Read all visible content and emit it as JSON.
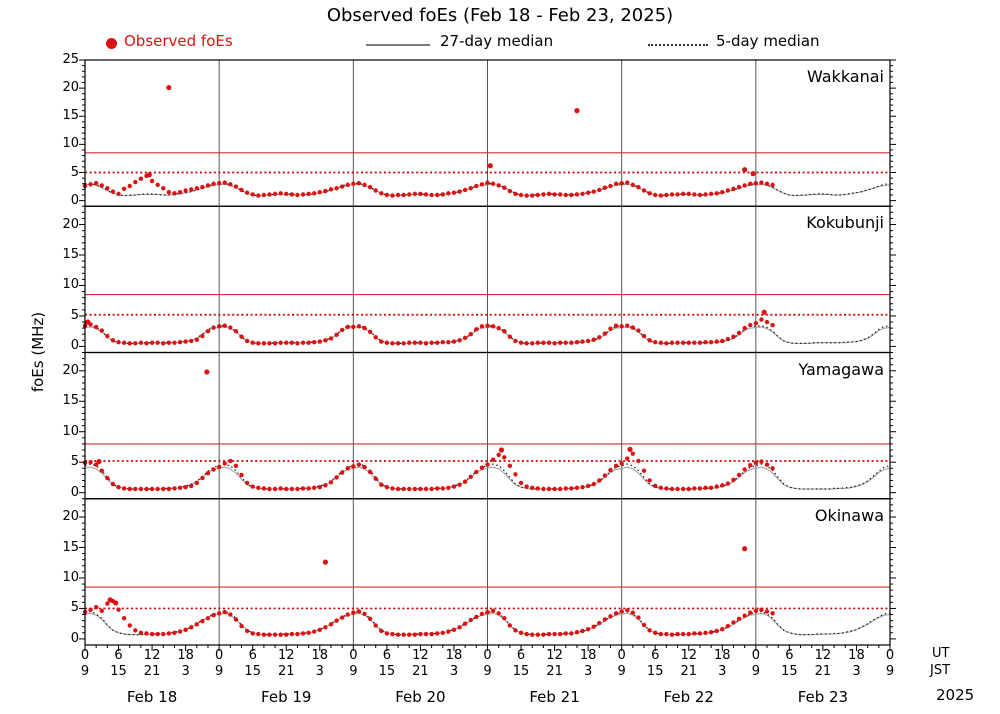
{
  "title": "Observed foEs (Feb 18 - Feb 23, 2025)",
  "legend": {
    "observed": "Observed foEs",
    "median27": "27-day median",
    "median5": "5-day median"
  },
  "ylabel": "foEs (MHz)",
  "corner": {
    "ut": "UT",
    "jst": "JST",
    "year": "2025"
  },
  "colors": {
    "observed": "#dd1111",
    "threshold_solid": "#cc3333",
    "threshold_dotted": "#cc0000",
    "median27": "#9a9a9a",
    "median5": "#1a1a1a",
    "dayline": "#555555",
    "frame": "#000000"
  },
  "chart_data": {
    "type": "scatter",
    "title": "Observed foEs (Feb 18 - Feb 23, 2025)",
    "ylabel": "foEs (MHz)",
    "x_axis": {
      "total_hours": 144,
      "major_tick_step_hours": 6,
      "minor_tick_step_hours": 2,
      "ut_tick_labels": [
        "0",
        "6",
        "12",
        "18",
        "0",
        "6",
        "12",
        "18",
        "0",
        "6",
        "12",
        "18",
        "0",
        "6",
        "12",
        "18",
        "0",
        "6",
        "12",
        "18",
        "0",
        "6",
        "12",
        "18",
        "0"
      ],
      "jst_tick_labels": [
        "9",
        "15",
        "21",
        "3",
        "9",
        "15",
        "21",
        "3",
        "9",
        "15",
        "21",
        "3",
        "9",
        "15",
        "21",
        "3",
        "9",
        "15",
        "21",
        "3",
        "9",
        "15",
        "21",
        "3",
        "9"
      ],
      "day_labels": [
        "Feb 18",
        "Feb 19",
        "Feb 20",
        "Feb 21",
        "Feb 22",
        "Feb 23"
      ],
      "day_centers_hours": [
        12,
        36,
        60,
        84,
        108,
        132
      ],
      "day_boundary_hours": [
        24,
        48,
        72,
        96,
        120
      ]
    },
    "stations": [
      {
        "name": "Wakkanai",
        "ymin": -1,
        "ymax": 25,
        "yticks": [
          0,
          5,
          10,
          15,
          20,
          25
        ],
        "threshold_solid": 8.5,
        "threshold_dotted": 5.0,
        "observed_start_hour": 0,
        "observed_step_hours": 1,
        "observed": [
          2.6,
          2.9,
          3.1,
          2.7,
          2.2,
          1.6,
          1.2,
          2.1,
          2.6,
          3.3,
          3.9,
          4.4,
          3.5,
          2.8,
          2.2,
          1.5,
          1.3,
          1.5,
          1.8,
          2.0,
          2.2,
          2.4,
          2.7,
          3.0,
          3.1,
          3.2,
          2.9,
          2.5,
          1.9,
          1.4,
          1.1,
          0.9,
          1.0,
          1.1,
          1.2,
          1.3,
          1.2,
          1.1,
          1.0,
          1.1,
          1.2,
          1.3,
          1.5,
          1.7,
          2.0,
          2.2,
          2.5,
          2.8,
          3.0,
          3.1,
          2.8,
          2.4,
          1.8,
          1.3,
          1.0,
          0.9,
          1.0,
          1.0,
          1.1,
          1.2,
          1.2,
          1.1,
          1.0,
          1.0,
          1.1,
          1.3,
          1.4,
          1.6,
          1.9,
          2.2,
          2.6,
          2.9,
          3.2,
          3.0,
          2.7,
          2.3,
          1.7,
          1.2,
          1.0,
          0.9,
          0.9,
          1.0,
          1.1,
          1.2,
          1.1,
          1.1,
          1.0,
          1.0,
          1.1,
          1.2,
          1.4,
          1.6,
          1.9,
          2.3,
          2.6,
          3.0,
          3.1,
          3.2,
          2.8,
          2.4,
          1.8,
          1.3,
          1.0,
          0.9,
          1.0,
          1.1,
          1.1,
          1.2,
          1.2,
          1.1,
          1.0,
          1.1,
          1.2,
          1.3,
          1.5,
          1.8,
          2.1,
          2.4,
          2.7,
          3.0,
          3.1,
          3.2,
          3.0,
          2.8
        ],
        "outliers": [
          [
            15,
            20.1
          ],
          [
            88,
            16.0
          ],
          [
            72.5,
            6.2
          ],
          [
            11.5,
            4.6
          ],
          [
            118,
            5.5
          ],
          [
            119.5,
            4.8
          ]
        ],
        "median27_daily": [
          2.8,
          2.9,
          2.7,
          2.3,
          1.8,
          1.3,
          1.0,
          0.9,
          0.9,
          1.0,
          1.1,
          1.1,
          1.1,
          1.1,
          1.0,
          1.0,
          1.1,
          1.2,
          1.4,
          1.6,
          1.9,
          2.2,
          2.5,
          2.7
        ],
        "median5_daily": [
          3.0,
          3.1,
          2.8,
          2.4,
          1.8,
          1.3,
          1.0,
          0.9,
          1.0,
          1.0,
          1.1,
          1.2,
          1.2,
          1.1,
          1.0,
          1.0,
          1.1,
          1.3,
          1.4,
          1.6,
          1.9,
          2.2,
          2.6,
          2.9
        ]
      },
      {
        "name": "Kokubunji",
        "ymin": -1,
        "ymax": 23,
        "yticks": [
          0,
          5,
          10,
          15,
          20
        ],
        "threshold_solid": 8.5,
        "threshold_dotted": 5.2,
        "observed_start_hour": 0,
        "observed_step_hours": 1,
        "observed": [
          3.4,
          3.6,
          3.2,
          2.6,
          1.7,
          1.0,
          0.7,
          0.6,
          0.5,
          0.5,
          0.6,
          0.5,
          0.6,
          0.6,
          0.5,
          0.6,
          0.6,
          0.7,
          0.8,
          0.9,
          1.1,
          1.7,
          2.5,
          3.1,
          3.3,
          3.4,
          3.1,
          2.5,
          1.6,
          0.9,
          0.6,
          0.5,
          0.5,
          0.5,
          0.5,
          0.6,
          0.6,
          0.6,
          0.5,
          0.6,
          0.6,
          0.7,
          0.8,
          1.0,
          1.3,
          1.9,
          2.7,
          3.2,
          3.2,
          3.3,
          3.0,
          2.4,
          1.5,
          0.8,
          0.6,
          0.5,
          0.5,
          0.5,
          0.6,
          0.6,
          0.6,
          0.5,
          0.6,
          0.6,
          0.7,
          0.7,
          0.8,
          1.0,
          1.4,
          2.0,
          2.8,
          3.3,
          3.4,
          3.3,
          3.0,
          2.5,
          1.6,
          0.9,
          0.6,
          0.5,
          0.5,
          0.6,
          0.6,
          0.6,
          0.5,
          0.6,
          0.6,
          0.6,
          0.7,
          0.8,
          0.9,
          1.1,
          1.5,
          2.1,
          2.9,
          3.4,
          3.3,
          3.4,
          3.1,
          2.6,
          1.7,
          1.0,
          0.7,
          0.6,
          0.5,
          0.6,
          0.6,
          0.6,
          0.6,
          0.6,
          0.6,
          0.7,
          0.7,
          0.8,
          0.9,
          1.2,
          1.6,
          2.2,
          3.0,
          3.5,
          3.8,
          4.4,
          4.0,
          3.5
        ],
        "outliers": [
          [
            121.5,
            5.6
          ],
          [
            0.5,
            4.0
          ]
        ],
        "median27_daily": [
          3.1,
          3.2,
          2.9,
          2.4,
          1.5,
          0.9,
          0.6,
          0.5,
          0.5,
          0.5,
          0.5,
          0.6,
          0.6,
          0.6,
          0.6,
          0.6,
          0.6,
          0.7,
          0.8,
          1.0,
          1.3,
          1.9,
          2.6,
          3.0
        ],
        "median5_daily": [
          3.3,
          3.4,
          3.1,
          2.5,
          1.6,
          0.9,
          0.6,
          0.5,
          0.5,
          0.5,
          0.6,
          0.6,
          0.6,
          0.6,
          0.6,
          0.6,
          0.7,
          0.7,
          0.8,
          1.0,
          1.4,
          2.0,
          2.8,
          3.3
        ]
      },
      {
        "name": "Yamagawa",
        "ymin": -1,
        "ymax": 23,
        "yticks": [
          0,
          5,
          10,
          15,
          20
        ],
        "threshold_solid": 8.0,
        "threshold_dotted": 5.2,
        "observed_start_hour": 0,
        "observed_step_hours": 1,
        "observed": [
          4.9,
          5.0,
          4.6,
          3.6,
          2.4,
          1.4,
          0.9,
          0.7,
          0.6,
          0.6,
          0.6,
          0.6,
          0.6,
          0.6,
          0.6,
          0.6,
          0.7,
          0.8,
          0.9,
          1.1,
          1.6,
          2.4,
          3.2,
          3.8,
          4.2,
          4.8,
          5.2,
          4.4,
          2.9,
          1.6,
          1.0,
          0.8,
          0.7,
          0.6,
          0.6,
          0.7,
          0.6,
          0.6,
          0.6,
          0.7,
          0.7,
          0.8,
          0.9,
          1.2,
          1.7,
          2.5,
          3.3,
          4.0,
          4.3,
          4.6,
          4.2,
          3.4,
          2.3,
          1.3,
          0.9,
          0.7,
          0.6,
          0.6,
          0.6,
          0.6,
          0.6,
          0.6,
          0.6,
          0.7,
          0.7,
          0.8,
          1.0,
          1.3,
          1.8,
          2.6,
          3.4,
          4.1,
          4.6,
          5.4,
          6.2,
          5.8,
          4.4,
          3.0,
          1.6,
          1.0,
          0.8,
          0.7,
          0.6,
          0.6,
          0.6,
          0.6,
          0.7,
          0.7,
          0.8,
          0.9,
          1.1,
          1.4,
          2.0,
          2.8,
          3.7,
          4.4,
          4.8,
          5.6,
          6.4,
          5.2,
          3.6,
          2.0,
          1.1,
          0.8,
          0.7,
          0.6,
          0.6,
          0.6,
          0.6,
          0.7,
          0.7,
          0.8,
          0.8,
          1.0,
          1.2,
          1.5,
          2.1,
          2.9,
          3.8,
          4.5,
          4.9,
          5.1,
          4.6,
          4.0
        ],
        "outliers": [
          [
            21.8,
            19.8
          ],
          [
            74.5,
            7.0
          ],
          [
            97.5,
            7.1
          ],
          [
            2.5,
            5.1
          ]
        ],
        "median27_daily": [
          4.0,
          4.2,
          3.9,
          3.2,
          2.2,
          1.3,
          0.9,
          0.7,
          0.6,
          0.6,
          0.6,
          0.6,
          0.6,
          0.6,
          0.6,
          0.7,
          0.7,
          0.8,
          1.0,
          1.3,
          1.8,
          2.5,
          3.3,
          3.8
        ],
        "median5_daily": [
          4.4,
          4.7,
          4.4,
          3.6,
          2.5,
          1.4,
          0.9,
          0.7,
          0.6,
          0.6,
          0.6,
          0.6,
          0.6,
          0.6,
          0.7,
          0.7,
          0.8,
          0.9,
          1.1,
          1.4,
          1.9,
          2.7,
          3.5,
          4.2
        ]
      },
      {
        "name": "Okinawa",
        "ymin": -1,
        "ymax": 23,
        "yticks": [
          0,
          5,
          10,
          15,
          20
        ],
        "threshold_solid": 8.5,
        "threshold_dotted": 5.0,
        "observed_start_hour": 0,
        "observed_step_hours": 1,
        "observed": [
          4.4,
          4.8,
          5.2,
          4.6,
          5.8,
          6.2,
          4.8,
          3.4,
          2.2,
          1.4,
          1.0,
          0.9,
          0.8,
          0.8,
          0.8,
          0.9,
          1.0,
          1.2,
          1.5,
          1.9,
          2.4,
          2.9,
          3.4,
          3.9,
          4.2,
          4.4,
          4.0,
          3.2,
          2.1,
          1.3,
          0.9,
          0.8,
          0.7,
          0.7,
          0.7,
          0.7,
          0.7,
          0.8,
          0.8,
          0.9,
          1.0,
          1.2,
          1.5,
          1.9,
          2.4,
          3.0,
          3.5,
          4.0,
          4.3,
          4.5,
          4.1,
          3.3,
          2.2,
          1.3,
          0.9,
          0.8,
          0.7,
          0.7,
          0.7,
          0.7,
          0.8,
          0.8,
          0.8,
          0.9,
          1.0,
          1.2,
          1.5,
          1.9,
          2.5,
          3.1,
          3.6,
          4.1,
          4.4,
          4.6,
          4.2,
          3.4,
          2.2,
          1.4,
          1.0,
          0.8,
          0.7,
          0.7,
          0.7,
          0.8,
          0.8,
          0.8,
          0.9,
          0.9,
          1.1,
          1.3,
          1.6,
          2.0,
          2.6,
          3.2,
          3.7,
          4.2,
          4.5,
          4.7,
          4.3,
          3.5,
          2.3,
          1.4,
          1.0,
          0.8,
          0.8,
          0.7,
          0.8,
          0.8,
          0.8,
          0.9,
          0.9,
          1.0,
          1.1,
          1.3,
          1.6,
          2.1,
          2.7,
          3.3,
          3.8,
          4.3,
          4.6,
          4.8,
          4.5,
          4.2
        ],
        "outliers": [
          [
            43,
            12.6
          ],
          [
            118,
            14.8
          ],
          [
            4.5,
            6.4
          ],
          [
            5.5,
            5.9
          ]
        ],
        "median27_daily": [
          4.0,
          4.2,
          3.9,
          3.2,
          2.2,
          1.4,
          1.0,
          0.8,
          0.7,
          0.7,
          0.7,
          0.7,
          0.8,
          0.8,
          0.8,
          0.9,
          1.0,
          1.2,
          1.5,
          1.9,
          2.4,
          3.0,
          3.5,
          3.9
        ],
        "median5_daily": [
          4.3,
          4.5,
          4.1,
          3.4,
          2.3,
          1.4,
          1.0,
          0.8,
          0.7,
          0.7,
          0.7,
          0.8,
          0.8,
          0.8,
          0.9,
          0.9,
          1.1,
          1.3,
          1.5,
          2.0,
          2.5,
          3.1,
          3.6,
          4.1
        ]
      }
    ]
  }
}
